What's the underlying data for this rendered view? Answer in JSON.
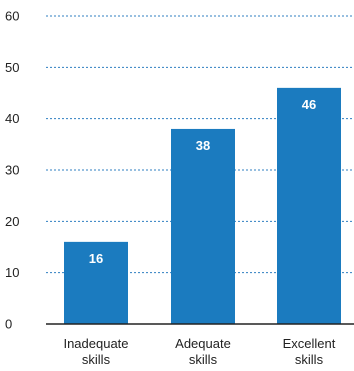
{
  "chart_data": {
    "type": "bar",
    "categories": [
      [
        "Inadequate",
        "skills"
      ],
      [
        "Adequate",
        "skills"
      ],
      [
        "Excellent",
        "skills"
      ]
    ],
    "values": [
      16,
      38,
      46
    ],
    "ylim": [
      0,
      60
    ],
    "yticks": [
      0,
      10,
      20,
      30,
      40,
      50,
      60
    ],
    "grid": true,
    "colors": {
      "bar": "#1b7bbf",
      "grid": "#2f7fc1",
      "value_label": "#ffffff"
    }
  }
}
